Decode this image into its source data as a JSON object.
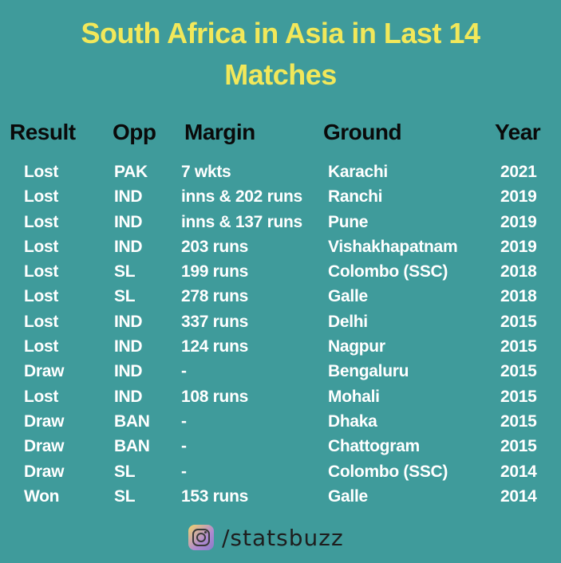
{
  "title": {
    "line1": "South Africa in Asia in Last 14",
    "line2": "Matches"
  },
  "headers": {
    "result": "Result",
    "opp": "Opp",
    "margin": "Margin",
    "ground": "Ground",
    "year": "Year"
  },
  "rows": [
    {
      "result": "Lost",
      "opp": "PAK",
      "margin": "7 wkts",
      "ground": "Karachi",
      "year": "2021"
    },
    {
      "result": "Lost",
      "opp": "IND",
      "margin": "inns & 202 runs",
      "ground": "Ranchi",
      "year": "2019"
    },
    {
      "result": "Lost",
      "opp": "IND",
      "margin": "inns & 137 runs",
      "ground": "Pune",
      "year": "2019"
    },
    {
      "result": "Lost",
      "opp": "IND",
      "margin": "203 runs",
      "ground": "Vishakhapatnam",
      "year": "2019"
    },
    {
      "result": "Lost",
      "opp": "SL",
      "margin": "199 runs",
      "ground": "Colombo (SSC)",
      "year": "2018"
    },
    {
      "result": "Lost",
      "opp": "SL",
      "margin": "278 runs",
      "ground": "Galle",
      "year": "2018"
    },
    {
      "result": "Lost",
      "opp": "IND",
      "margin": "337 runs",
      "ground": "Delhi",
      "year": "2015"
    },
    {
      "result": "Lost",
      "opp": "IND",
      "margin": "124 runs",
      "ground": "Nagpur",
      "year": "2015"
    },
    {
      "result": "Draw",
      "opp": "IND",
      "margin": "-",
      "ground": "Bengaluru",
      "year": "2015"
    },
    {
      "result": "Lost",
      "opp": "IND",
      "margin": "108 runs",
      "ground": "Mohali",
      "year": "2015"
    },
    {
      "result": "Draw",
      "opp": "BAN",
      "margin": "-",
      "ground": "Dhaka",
      "year": "2015"
    },
    {
      "result": "Draw",
      "opp": "BAN",
      "margin": "-",
      "ground": "Chattogram",
      "year": "2015"
    },
    {
      "result": "Draw",
      "opp": "SL",
      "margin": "-",
      "ground": "Colombo (SSC)",
      "year": "2014"
    },
    {
      "result": "Won",
      "opp": "SL",
      "margin": "153 runs",
      "ground": "Galle",
      "year": "2014"
    }
  ],
  "footer": {
    "icon": "instagram-icon",
    "handle": "/statsbuzz"
  },
  "colors": {
    "background": "#3f9b9b",
    "title": "#f2e85a",
    "header_text": "#0a0a0a",
    "row_text": "#ffffff"
  }
}
